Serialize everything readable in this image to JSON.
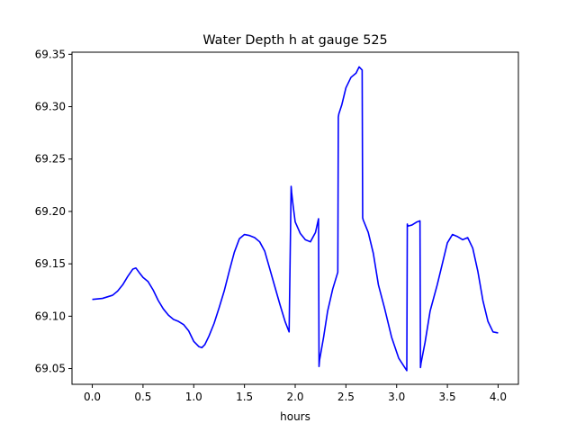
{
  "chart_data": {
    "type": "line",
    "title": "Water Depth h at gauge 525",
    "xlabel": "hours",
    "ylabel": "",
    "xlim": [
      -0.2,
      4.2
    ],
    "ylim": [
      69.035,
      69.352
    ],
    "xticks": [
      0.0,
      0.5,
      1.0,
      1.5,
      2.0,
      2.5,
      3.0,
      3.5,
      4.0
    ],
    "xtick_labels": [
      "0.0",
      "0.5",
      "1.0",
      "1.5",
      "2.0",
      "2.5",
      "3.0",
      "3.5",
      "4.0"
    ],
    "yticks": [
      69.05,
      69.1,
      69.15,
      69.2,
      69.25,
      69.3,
      69.35
    ],
    "ytick_labels": [
      "69.05",
      "69.10",
      "69.15",
      "69.20",
      "69.25",
      "69.30",
      "69.35"
    ],
    "grid": false,
    "series": [
      {
        "color": "#0000ff",
        "x": [
          0.0,
          0.1,
          0.2,
          0.25,
          0.3,
          0.35,
          0.4,
          0.43,
          0.46,
          0.5,
          0.55,
          0.6,
          0.65,
          0.7,
          0.75,
          0.8,
          0.85,
          0.9,
          0.95,
          1.0,
          1.05,
          1.08,
          1.11,
          1.15,
          1.2,
          1.25,
          1.3,
          1.35,
          1.4,
          1.45,
          1.5,
          1.55,
          1.6,
          1.65,
          1.7,
          1.75,
          1.8,
          1.85,
          1.9,
          1.94,
          1.96,
          1.965,
          1.98,
          2.0,
          2.05,
          2.1,
          2.15,
          2.2,
          2.23,
          2.235,
          2.24,
          2.28,
          2.32,
          2.37,
          2.42,
          2.425,
          2.43,
          2.46,
          2.5,
          2.55,
          2.6,
          2.63,
          2.66,
          2.665,
          2.67,
          2.72,
          2.77,
          2.82,
          2.88,
          2.95,
          3.02,
          3.1,
          3.105,
          3.11,
          3.15,
          3.2,
          3.23,
          3.235,
          3.24,
          3.28,
          3.33,
          3.4,
          3.45,
          3.5,
          3.55,
          3.6,
          3.65,
          3.7,
          3.75,
          3.8,
          3.85,
          3.9,
          3.95,
          4.0
        ],
        "y": [
          69.116,
          69.117,
          69.12,
          69.124,
          69.13,
          69.138,
          69.145,
          69.146,
          69.142,
          69.137,
          69.133,
          69.125,
          69.115,
          69.107,
          69.101,
          69.097,
          69.095,
          69.092,
          69.086,
          69.076,
          69.071,
          69.07,
          69.073,
          69.081,
          69.093,
          69.108,
          69.124,
          69.143,
          69.161,
          69.174,
          69.178,
          69.177,
          69.175,
          69.171,
          69.162,
          69.145,
          69.128,
          69.111,
          69.095,
          69.085,
          69.224,
          69.218,
          69.205,
          69.19,
          69.179,
          69.173,
          69.171,
          69.18,
          69.193,
          69.052,
          69.058,
          69.08,
          69.105,
          69.126,
          69.142,
          69.29,
          69.293,
          69.302,
          69.318,
          69.328,
          69.332,
          69.338,
          69.335,
          69.194,
          69.192,
          69.18,
          69.16,
          69.13,
          69.108,
          69.08,
          69.06,
          69.048,
          69.188,
          69.186,
          69.187,
          69.19,
          69.191,
          69.051,
          69.055,
          69.075,
          69.105,
          69.13,
          69.15,
          69.17,
          69.178,
          69.176,
          69.173,
          69.175,
          69.165,
          69.143,
          69.115,
          69.095,
          69.085,
          69.084
        ]
      }
    ]
  }
}
